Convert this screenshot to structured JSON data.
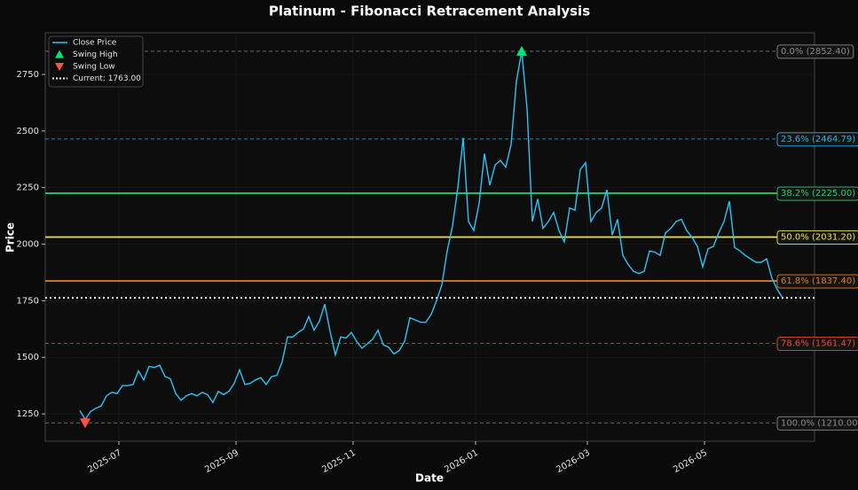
{
  "chart_data": {
    "type": "line",
    "title": "Platinum - Fibonacci Retracement Analysis",
    "xlabel": "Date",
    "ylabel": "Price",
    "x": [
      "2025-06",
      "2025-06",
      "2025-06",
      "2025-06",
      "2025-06",
      "2025-06",
      "2025-06",
      "2025-06",
      "2025-07",
      "2025-07",
      "2025-07",
      "2025-07",
      "2025-07",
      "2025-07",
      "2025-07",
      "2025-07",
      "2025-07",
      "2025-07",
      "2025-07",
      "2025-08",
      "2025-08",
      "2025-08",
      "2025-08",
      "2025-08",
      "2025-08",
      "2025-08",
      "2025-08",
      "2025-08",
      "2025-08",
      "2025-08",
      "2025-09",
      "2025-09",
      "2025-09",
      "2025-09",
      "2025-09",
      "2025-09",
      "2025-09",
      "2025-09",
      "2025-09",
      "2025-09",
      "2025-09",
      "2025-10",
      "2025-10",
      "2025-10",
      "2025-10",
      "2025-10",
      "2025-10",
      "2025-10",
      "2025-10",
      "2025-10",
      "2025-10",
      "2025-10",
      "2025-11",
      "2025-11",
      "2025-11",
      "2025-11",
      "2025-11",
      "2025-11",
      "2025-11",
      "2025-11",
      "2025-11",
      "2025-11",
      "2025-11",
      "2025-12",
      "2025-12",
      "2025-12",
      "2025-12",
      "2025-12",
      "2025-12",
      "2025-12",
      "2025-12",
      "2025-12",
      "2025-12",
      "2025-12",
      "2025-12",
      "2026-01",
      "2026-01",
      "2026-01",
      "2026-01",
      "2026-01",
      "2026-01",
      "2026-01",
      "2026-01",
      "2026-01",
      "2026-01",
      "2026-02",
      "2026-02",
      "2026-02",
      "2026-02",
      "2026-02",
      "2026-02",
      "2026-02",
      "2026-02",
      "2026-02",
      "2026-02",
      "2026-02",
      "2026-03",
      "2026-03",
      "2026-03",
      "2026-03",
      "2026-03",
      "2026-03",
      "2026-03",
      "2026-03",
      "2026-03",
      "2026-03",
      "2026-03",
      "2026-04",
      "2026-04",
      "2026-04",
      "2026-04",
      "2026-04",
      "2026-04",
      "2026-04",
      "2026-04",
      "2026-04",
      "2026-04",
      "2026-04",
      "2026-05",
      "2026-05",
      "2026-05",
      "2026-05",
      "2026-05",
      "2026-05",
      "2026-05",
      "2026-05",
      "2026-05",
      "2026-05",
      "2026-05",
      "2026-06",
      "2026-06",
      "2026-06",
      "2026-06"
    ],
    "xticks": [
      "2025-07",
      "2025-09",
      "2025-11",
      "2026-01",
      "2026-03",
      "2026-05"
    ],
    "series": [
      {
        "name": "Close Price",
        "color": "#29c5f6",
        "values": [
          1265,
          1225,
          1260,
          1275,
          1285,
          1330,
          1345,
          1340,
          1375,
          1375,
          1380,
          1440,
          1400,
          1460,
          1455,
          1465,
          1415,
          1405,
          1340,
          1310,
          1330,
          1340,
          1330,
          1345,
          1335,
          1300,
          1350,
          1335,
          1350,
          1385,
          1445,
          1380,
          1385,
          1400,
          1410,
          1380,
          1415,
          1420,
          1480,
          1590,
          1590,
          1610,
          1625,
          1680,
          1620,
          1660,
          1735,
          1615,
          1510,
          1590,
          1585,
          1610,
          1570,
          1540,
          1560,
          1580,
          1620,
          1555,
          1545,
          1515,
          1530,
          1570,
          1675,
          1665,
          1655,
          1655,
          1690,
          1750,
          1820,
          1970,
          2080,
          2250,
          2470,
          2100,
          2060,
          2180,
          2400,
          2260,
          2350,
          2370,
          2340,
          2440,
          2720,
          2852.4,
          2600,
          2100,
          2200,
          2070,
          2100,
          2140,
          2060,
          2010,
          2160,
          2150,
          2330,
          2360,
          2100,
          2140,
          2160,
          2240,
          2040,
          2110,
          1950,
          1910,
          1880,
          1870,
          1880,
          1970,
          1965,
          1950,
          2050,
          2070,
          2100,
          2110,
          2060,
          2030,
          1990,
          1900,
          1980,
          1990,
          2050,
          2100,
          2190,
          1985,
          1970,
          1950,
          1935,
          1920,
          1920,
          1935,
          1850,
          1800,
          1763
        ]
      },
      {
        "name": "Swing High",
        "color": "#00e676",
        "marker": "triangle-up",
        "values": [
          null,
          null,
          null,
          null,
          null,
          null,
          null,
          null,
          null,
          null,
          null,
          null,
          null,
          null,
          null,
          null,
          null,
          null,
          null,
          null,
          null,
          null,
          null,
          null,
          null,
          null,
          null,
          null,
          null,
          null,
          null,
          null,
          null,
          null,
          null,
          null,
          null,
          null,
          null,
          null,
          null,
          null,
          null,
          null,
          null,
          null,
          null,
          null,
          null,
          null,
          null,
          null,
          null,
          null,
          null,
          null,
          null,
          null,
          null,
          null,
          null,
          null,
          null,
          null,
          null,
          null,
          null,
          null,
          null,
          null,
          null,
          null,
          null,
          null,
          null,
          null,
          null,
          null,
          null,
          null,
          null,
          null,
          null,
          2852.4,
          null,
          null,
          null,
          null,
          null,
          null,
          null,
          null,
          null,
          null,
          null,
          null,
          null,
          null,
          null,
          null,
          null,
          null,
          null,
          null,
          null,
          null,
          null,
          null,
          null,
          null,
          null,
          null,
          null,
          null,
          null,
          null,
          null,
          null,
          null,
          null,
          null,
          null,
          null,
          null,
          null,
          null,
          null,
          null,
          null,
          null,
          null,
          null,
          null
        ]
      },
      {
        "name": "Swing Low",
        "color": "#ff4d4d",
        "marker": "triangle-down",
        "values": [
          null,
          1210,
          null,
          null,
          null,
          null,
          null,
          null,
          null,
          null,
          null,
          null,
          null,
          null,
          null,
          null,
          null,
          null,
          null,
          null,
          null,
          null,
          null,
          null,
          null,
          null,
          null,
          null,
          null,
          null,
          null,
          null,
          null,
          null,
          null,
          null,
          null,
          null,
          null,
          null,
          null,
          null,
          null,
          null,
          null,
          null,
          null,
          null,
          null,
          null,
          null,
          null,
          null,
          null,
          null,
          null,
          null,
          null,
          null,
          null,
          null,
          null,
          null,
          null,
          null,
          null,
          null,
          null,
          null,
          null,
          null,
          null,
          null,
          null,
          null,
          null,
          null,
          null,
          null,
          null,
          null,
          null,
          null,
          null,
          null,
          null,
          null,
          null,
          null,
          null,
          null,
          null,
          null,
          null,
          null,
          null,
          null,
          null,
          null,
          null,
          null,
          null,
          null,
          null,
          null,
          null,
          null,
          null,
          null,
          null,
          null,
          null,
          null,
          null,
          null,
          null,
          null,
          null,
          null,
          null,
          null,
          null,
          null,
          null,
          null,
          null,
          null,
          null,
          null,
          null,
          null,
          null,
          null
        ]
      }
    ],
    "fib_levels": [
      {
        "label": "0.0% (2852.40)",
        "value": 2852.4,
        "color": "#8a8a8a",
        "dashed": true
      },
      {
        "label": "23.6% (2464.79)",
        "value": 2464.79,
        "color": "#29b6e8",
        "dashed": true
      },
      {
        "label": "38.2% (2225.00)",
        "value": 2225.0,
        "color": "#2ecc71",
        "dashed": false
      },
      {
        "label": "50.0% (2031.20)",
        "value": 2031.2,
        "color": "#f1e05a",
        "dashed": false
      },
      {
        "label": "61.8% (1837.40)",
        "value": 1837.4,
        "color": "#e67e22",
        "dashed": false
      },
      {
        "label": "78.6% (1561.47)",
        "value": 1561.47,
        "color": "#e74c3c",
        "dashed": true
      },
      {
        "label": "100.0% (1210.00)",
        "value": 1210.0,
        "color": "#8a8a8a",
        "dashed": true
      }
    ],
    "current": {
      "label": "Current: 1763.00",
      "value": 1763,
      "color": "#ffffff"
    },
    "ylim": [
      1129,
      2934
    ],
    "yticks": [
      1250,
      1500,
      1750,
      2000,
      2250,
      2500,
      2750
    ],
    "grid": true,
    "legend": "upper left"
  }
}
